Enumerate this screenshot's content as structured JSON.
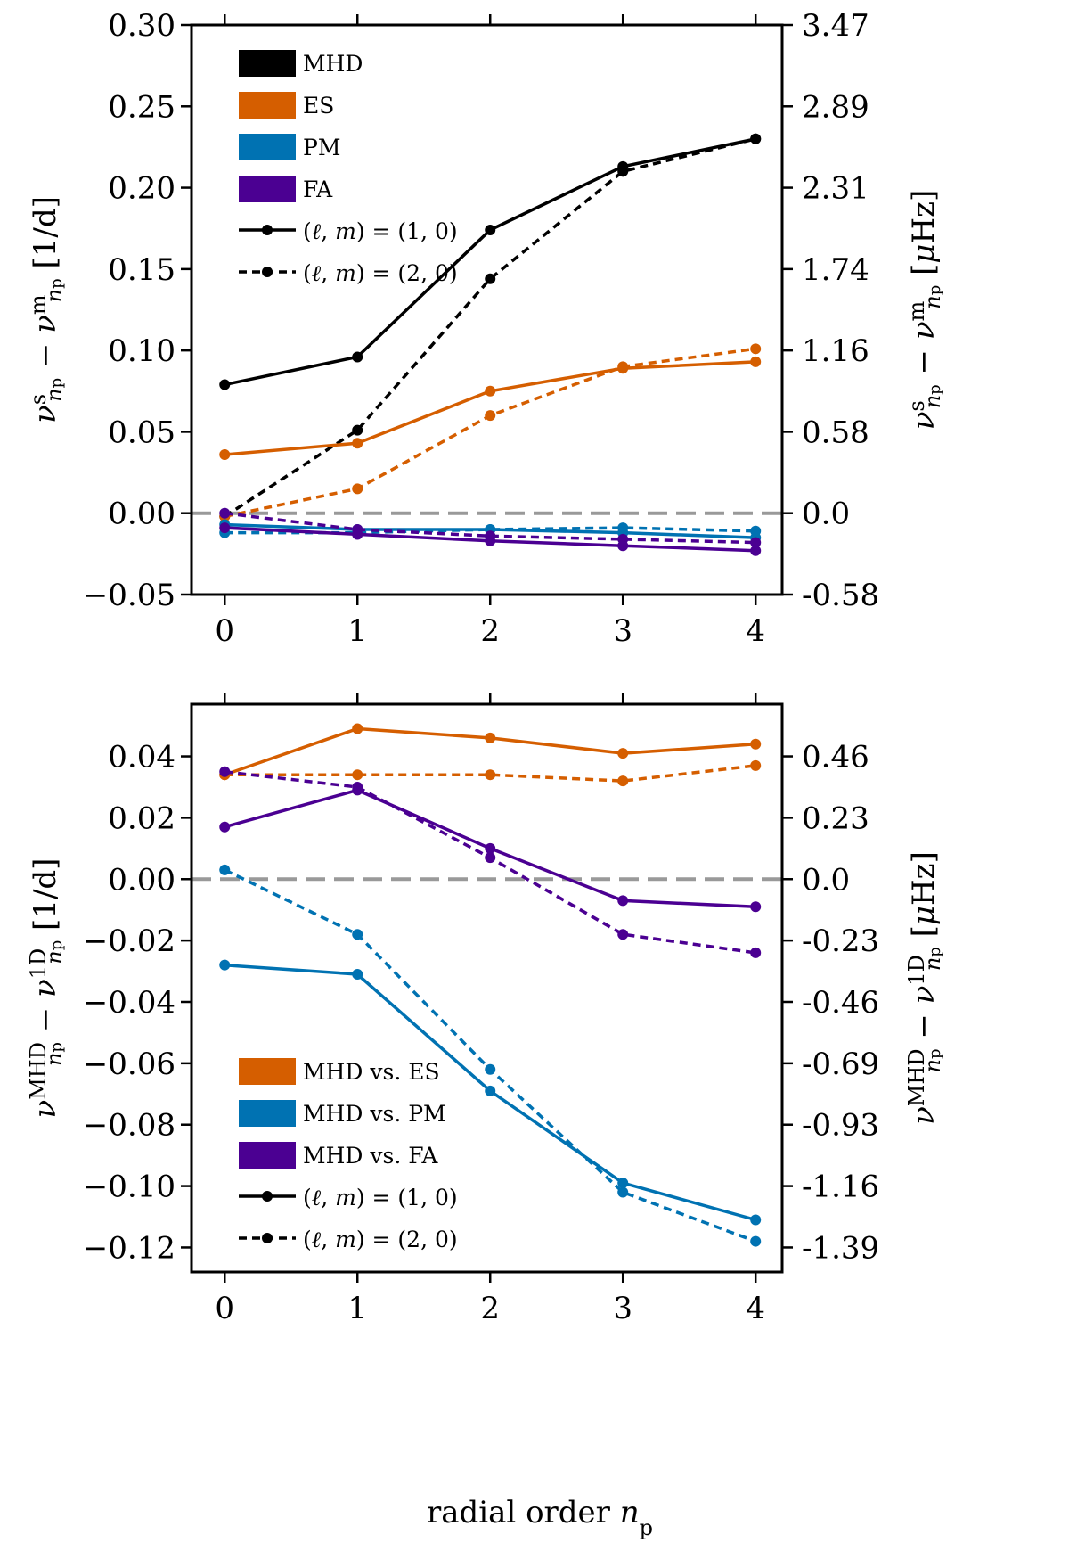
{
  "xlabel": "radial order n_p",
  "chart_data": [
    {
      "type": "line",
      "x": [
        0,
        1,
        2,
        3,
        4
      ],
      "xticks": [
        "0",
        "1",
        "2",
        "3",
        "4"
      ],
      "xlim": [
        -0.25,
        4.2
      ],
      "ylim": [
        -0.05,
        0.3
      ],
      "yticks": [
        -0.05,
        0.0,
        0.05,
        0.1,
        0.15,
        0.2,
        0.25,
        0.3
      ],
      "ytick_labels": [
        "−0.05",
        "0.00",
        "0.05",
        "0.10",
        "0.15",
        "0.20",
        "0.25",
        "0.30"
      ],
      "ylabel": "ν^s_np − ν^m_np [1/d]",
      "y2label": "ν^s_np − ν^m_np [μHz]",
      "y2tick_labels": [
        "-0.58",
        "0.0",
        "0.58",
        "1.16",
        "1.74",
        "2.31",
        "2.89",
        "3.47"
      ],
      "zero_line": true,
      "legend_loc": "top-left",
      "legend": {
        "colors": [
          "MHD",
          "ES",
          "PM",
          "FA"
        ],
        "styles": [
          "(ℓ, m) = (1, 0)",
          "(ℓ, m) = (2, 0)"
        ]
      },
      "series": [
        {
          "name": "MHD",
          "mode": "(1, 0)",
          "color": "#000000",
          "dash": false,
          "values": [
            0.079,
            0.096,
            0.174,
            0.213,
            0.23
          ]
        },
        {
          "name": "MHD",
          "mode": "(2, 0)",
          "color": "#000000",
          "dash": true,
          "values": [
            -0.002,
            0.051,
            0.144,
            0.21,
            0.23
          ]
        },
        {
          "name": "ES",
          "mode": "(1, 0)",
          "color": "#d55e00",
          "dash": false,
          "values": [
            0.036,
            0.043,
            0.075,
            0.089,
            0.093
          ]
        },
        {
          "name": "ES",
          "mode": "(2, 0)",
          "color": "#d55e00",
          "dash": true,
          "values": [
            -0.002,
            0.015,
            0.06,
            0.09,
            0.101
          ]
        },
        {
          "name": "PM",
          "mode": "(1, 0)",
          "color": "#0072b2",
          "dash": false,
          "values": [
            -0.007,
            -0.01,
            -0.01,
            -0.012,
            -0.015
          ]
        },
        {
          "name": "PM",
          "mode": "(2, 0)",
          "color": "#0072b2",
          "dash": true,
          "values": [
            -0.012,
            -0.012,
            -0.01,
            -0.009,
            -0.011
          ]
        },
        {
          "name": "FA",
          "mode": "(1, 0)",
          "color": "#4b0092",
          "dash": false,
          "values": [
            -0.009,
            -0.013,
            -0.017,
            -0.02,
            -0.023
          ]
        },
        {
          "name": "FA",
          "mode": "(2, 0)",
          "color": "#4b0092",
          "dash": true,
          "values": [
            0.0,
            -0.01,
            -0.014,
            -0.016,
            -0.018
          ]
        }
      ]
    },
    {
      "type": "line",
      "x": [
        0,
        1,
        2,
        3,
        4
      ],
      "xticks": [
        "0",
        "1",
        "2",
        "3",
        "4"
      ],
      "xlim": [
        -0.25,
        4.2
      ],
      "ylim": [
        -0.128,
        0.057
      ],
      "yticks": [
        -0.12,
        -0.1,
        -0.08,
        -0.06,
        -0.04,
        -0.02,
        0.0,
        0.02,
        0.04
      ],
      "ytick_labels": [
        "−0.12",
        "−0.10",
        "−0.08",
        "−0.06",
        "−0.04",
        "−0.02",
        "0.00",
        "0.02",
        "0.04"
      ],
      "ylabel": "ν^MHD_np − ν^1D_np [1/d]",
      "y2label": "ν^MHD_np − ν^1D_np [μHz]",
      "y2tick_labels": [
        "-1.39",
        "-1.16",
        "-0.93",
        "-0.69",
        "-0.46",
        "-0.23",
        "0.0",
        "0.23",
        "0.46"
      ],
      "zero_line": true,
      "legend_loc": "bottom-left",
      "legend": {
        "colors": [
          "MHD vs. ES",
          "MHD vs. PM",
          "MHD vs. FA"
        ],
        "styles": [
          "(ℓ, m) = (1, 0)",
          "(ℓ, m) = (2, 0)"
        ]
      },
      "series": [
        {
          "name": "MHD vs. ES",
          "mode": "(1, 0)",
          "color": "#d55e00",
          "dash": false,
          "values": [
            0.034,
            0.049,
            0.046,
            0.041,
            0.044
          ]
        },
        {
          "name": "MHD vs. ES",
          "mode": "(2, 0)",
          "color": "#d55e00",
          "dash": true,
          "values": [
            0.034,
            0.034,
            0.034,
            0.032,
            0.037
          ]
        },
        {
          "name": "MHD vs. PM",
          "mode": "(1, 0)",
          "color": "#0072b2",
          "dash": false,
          "values": [
            -0.028,
            -0.031,
            -0.069,
            -0.099,
            -0.111
          ]
        },
        {
          "name": "MHD vs. PM",
          "mode": "(2, 0)",
          "color": "#0072b2",
          "dash": true,
          "values": [
            0.003,
            -0.018,
            -0.062,
            -0.102,
            -0.118
          ]
        },
        {
          "name": "MHD vs. FA",
          "mode": "(1, 0)",
          "color": "#4b0092",
          "dash": false,
          "values": [
            0.017,
            0.029,
            0.01,
            -0.007,
            -0.009
          ]
        },
        {
          "name": "MHD vs. FA",
          "mode": "(2, 0)",
          "color": "#4b0092",
          "dash": true,
          "values": [
            0.035,
            0.03,
            0.007,
            -0.018,
            -0.024
          ]
        }
      ]
    }
  ]
}
